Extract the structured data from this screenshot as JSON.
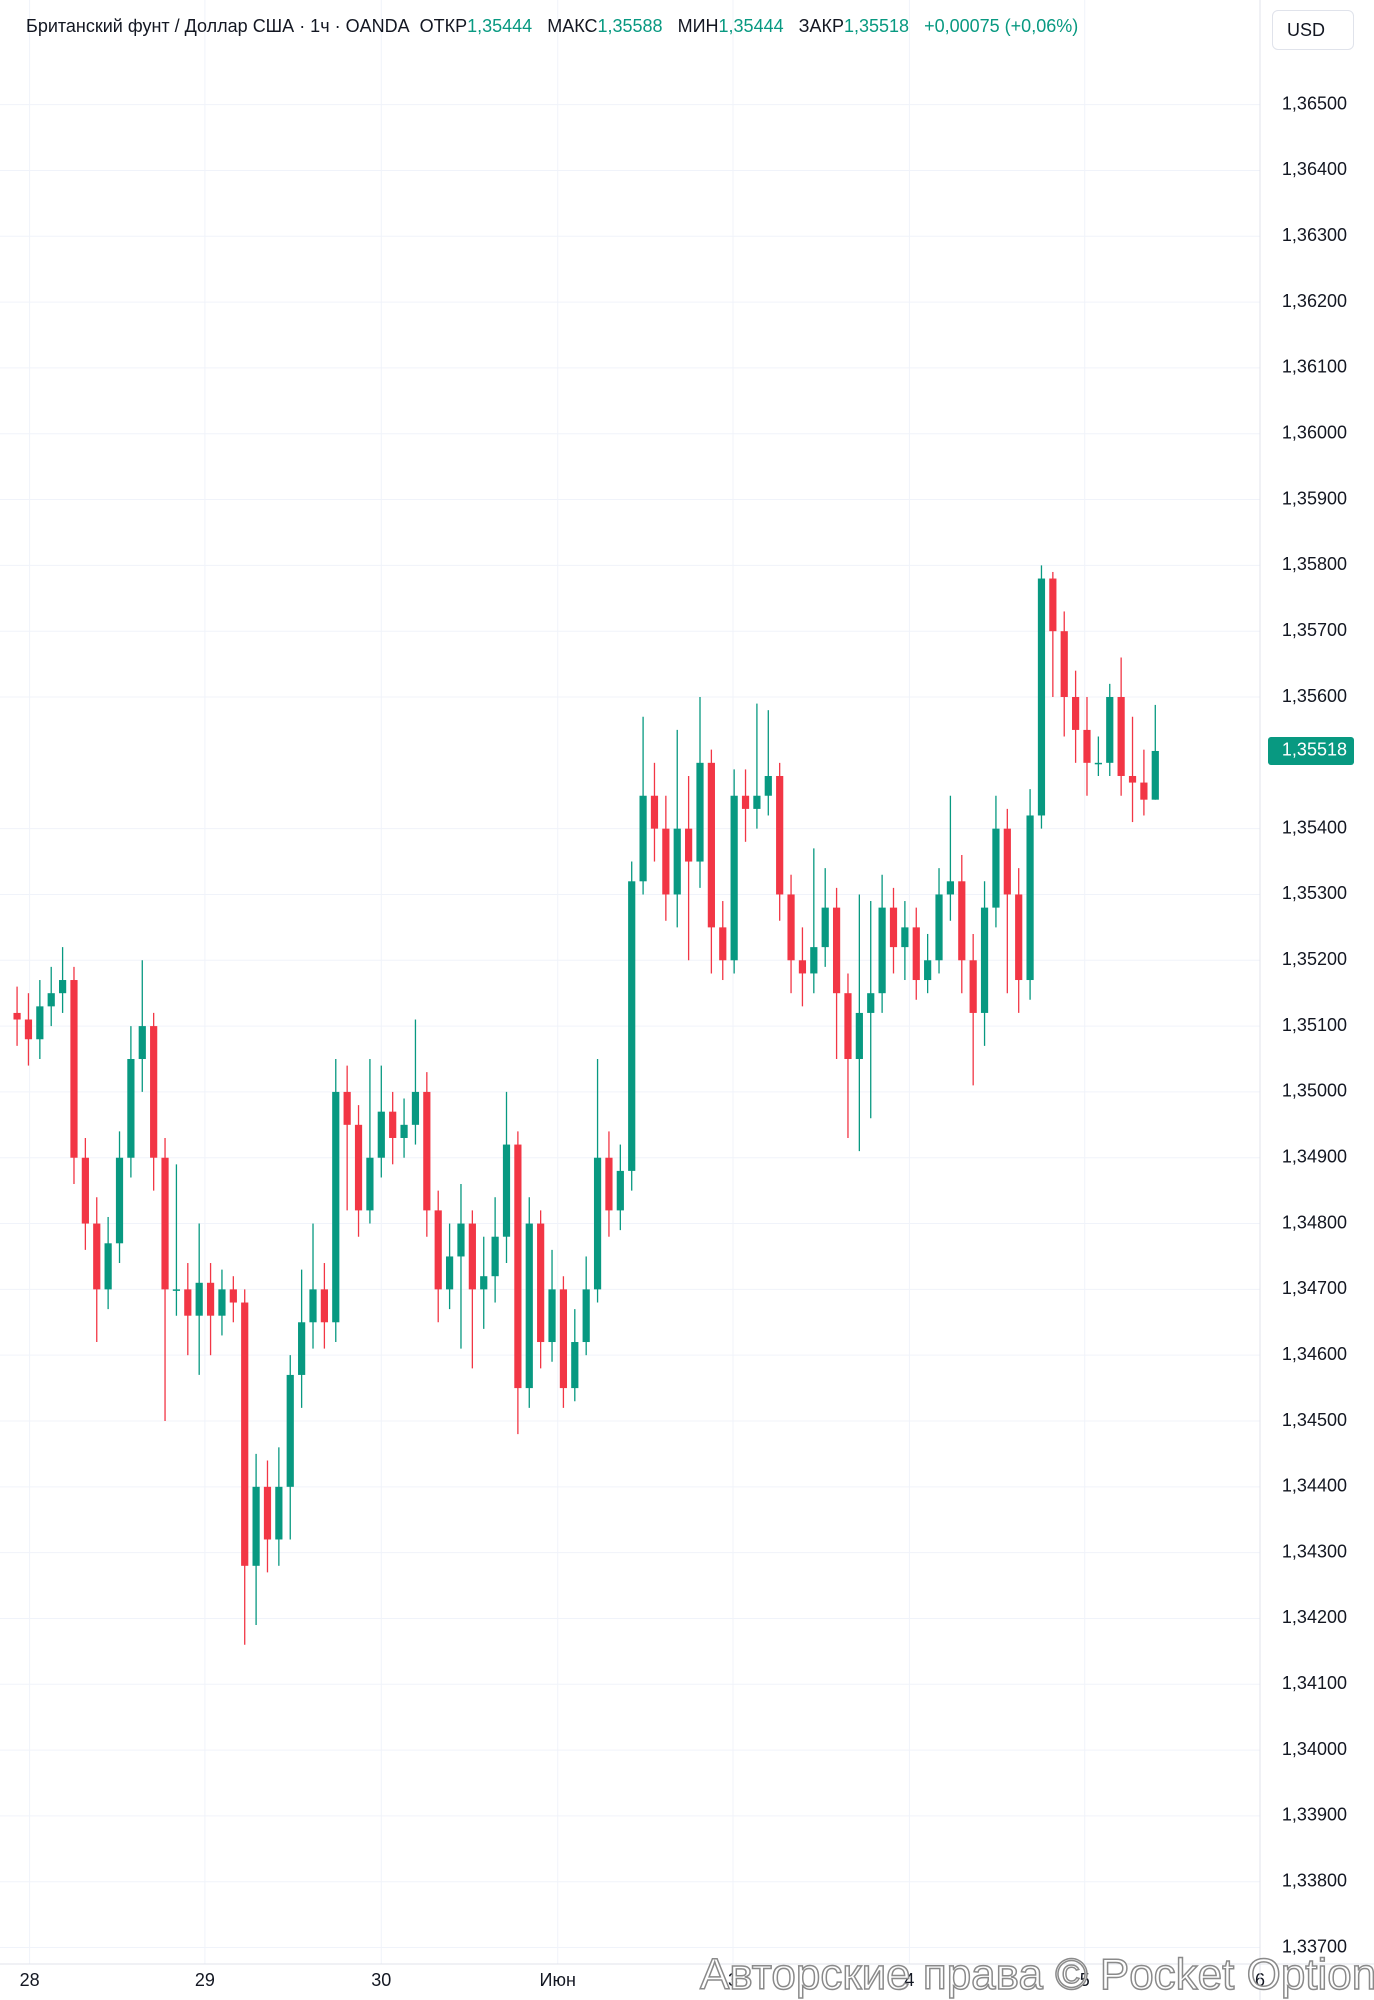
{
  "header": {
    "title": "Британский фунт / Доллар США · 1ч · OANDA",
    "open_label": "ОТКР",
    "open": "1,35444",
    "high_label": "МАКС",
    "high": "1,35588",
    "low_label": "МИН",
    "low": "1,35444",
    "close_label": "ЗАКР",
    "close": "1,35518",
    "change": "+0,00075 (+0,06%)",
    "currency": "USD"
  },
  "watermark": "Авторские права © Pocket Option",
  "chart_data": {
    "type": "candlestick",
    "up_color": "#089981",
    "down_color": "#f23645",
    "grid": true,
    "last_price_label": "1,35518",
    "xlim": [
      -1.5,
      109.2
    ],
    "xticks": [
      {
        "value": 1.1,
        "label": "28"
      },
      {
        "value": 16.5,
        "label": "29"
      },
      {
        "value": 32,
        "label": "30"
      },
      {
        "value": 47.5,
        "label": "Июн"
      },
      {
        "value": 62.9,
        "label": "3"
      },
      {
        "value": 78.4,
        "label": "4"
      },
      {
        "value": 93.8,
        "label": "5"
      },
      {
        "value": 109.2,
        "label": "6"
      }
    ],
    "ylim": [
      1.33675,
      1.36659
    ],
    "yticks": [
      {
        "value": 1.337,
        "label": "1,33700"
      },
      {
        "value": 1.338,
        "label": "1,33800"
      },
      {
        "value": 1.339,
        "label": "1,33900"
      },
      {
        "value": 1.34,
        "label": "1,34000"
      },
      {
        "value": 1.341,
        "label": "1,34100"
      },
      {
        "value": 1.342,
        "label": "1,34200"
      },
      {
        "value": 1.343,
        "label": "1,34300"
      },
      {
        "value": 1.344,
        "label": "1,34400"
      },
      {
        "value": 1.345,
        "label": "1,34500"
      },
      {
        "value": 1.346,
        "label": "1,34600"
      },
      {
        "value": 1.347,
        "label": "1,34700"
      },
      {
        "value": 1.348,
        "label": "1,34800"
      },
      {
        "value": 1.349,
        "label": "1,34900"
      },
      {
        "value": 1.35,
        "label": "1,35000"
      },
      {
        "value": 1.351,
        "label": "1,35100"
      },
      {
        "value": 1.352,
        "label": "1,35200"
      },
      {
        "value": 1.353,
        "label": "1,35300"
      },
      {
        "value": 1.354,
        "label": "1,35400"
      },
      {
        "value": 1.356,
        "label": "1,35600"
      },
      {
        "value": 1.357,
        "label": "1,35700"
      },
      {
        "value": 1.358,
        "label": "1,35800"
      },
      {
        "value": 1.359,
        "label": "1,35900"
      },
      {
        "value": 1.36,
        "label": "1,36000"
      },
      {
        "value": 1.361,
        "label": "1,36100"
      },
      {
        "value": 1.362,
        "label": "1,36200"
      },
      {
        "value": 1.363,
        "label": "1,36300"
      },
      {
        "value": 1.364,
        "label": "1,36400"
      },
      {
        "value": 1.365,
        "label": "1,36500"
      }
    ],
    "open": [
      1.3512,
      1.3511,
      1.3508,
      1.3513,
      1.3515,
      1.3517,
      1.349,
      1.348,
      1.347,
      1.3477,
      1.349,
      1.3505,
      1.351,
      1.349,
      1.347,
      1.347,
      1.3466,
      1.3471,
      1.3466,
      1.347,
      1.3468,
      1.3428,
      1.344,
      1.3432,
      1.344,
      1.3457,
      1.3465,
      1.347,
      1.3465,
      1.35,
      1.3495,
      1.3482,
      1.349,
      1.3497,
      1.3493,
      1.3495,
      1.35,
      1.3482,
      1.347,
      1.3475,
      1.348,
      1.347,
      1.3472,
      1.3478,
      1.3492,
      1.3455,
      1.348,
      1.3462,
      1.347,
      1.3455,
      1.3462,
      1.347,
      1.349,
      1.3482,
      1.3488,
      1.3532,
      1.3545,
      1.354,
      1.353,
      1.354,
      1.3535,
      1.355,
      1.3525,
      1.352,
      1.3545,
      1.3543,
      1.3545,
      1.3548,
      1.353,
      1.352,
      1.3518,
      1.3522,
      1.3528,
      1.3515,
      1.3505,
      1.3512,
      1.3515,
      1.3528,
      1.3522,
      1.3525,
      1.3517,
      1.352,
      1.353,
      1.3532,
      1.352,
      1.3512,
      1.3528,
      1.354,
      1.353,
      1.3517,
      1.3542,
      1.3578,
      1.357,
      1.356,
      1.3555,
      1.355,
      1.355,
      1.356,
      1.3548,
      1.3547,
      1.35444
    ],
    "high": [
      1.3516,
      1.3515,
      1.3517,
      1.3519,
      1.3522,
      1.3519,
      1.3493,
      1.3484,
      1.3481,
      1.3494,
      1.351,
      1.352,
      1.3512,
      1.3493,
      1.3489,
      1.3474,
      1.348,
      1.3474,
      1.3473,
      1.3472,
      1.347,
      1.3445,
      1.3444,
      1.3446,
      1.346,
      1.3473,
      1.348,
      1.3474,
      1.3505,
      1.3504,
      1.3498,
      1.3505,
      1.3504,
      1.35,
      1.3499,
      1.3511,
      1.3503,
      1.3485,
      1.348,
      1.3486,
      1.3482,
      1.3478,
      1.3484,
      1.35,
      1.3494,
      1.3484,
      1.3482,
      1.3476,
      1.3472,
      1.3467,
      1.3475,
      1.3505,
      1.3494,
      1.3492,
      1.3535,
      1.3557,
      1.355,
      1.3545,
      1.3555,
      1.3548,
      1.356,
      1.3552,
      1.3529,
      1.3549,
      1.3549,
      1.3559,
      1.3558,
      1.355,
      1.3533,
      1.3525,
      1.3537,
      1.3534,
      1.3531,
      1.3518,
      1.353,
      1.3529,
      1.3533,
      1.3531,
      1.3529,
      1.3528,
      1.3524,
      1.3534,
      1.3545,
      1.3536,
      1.3524,
      1.3532,
      1.3545,
      1.3543,
      1.3534,
      1.3546,
      1.358,
      1.3579,
      1.3573,
      1.3564,
      1.356,
      1.3554,
      1.3562,
      1.3566,
      1.3557,
      1.3552,
      1.35588
    ],
    "low": [
      1.3507,
      1.3504,
      1.3505,
      1.351,
      1.3512,
      1.3486,
      1.3476,
      1.3462,
      1.3467,
      1.3474,
      1.3487,
      1.35,
      1.3485,
      1.345,
      1.3466,
      1.346,
      1.3457,
      1.346,
      1.3463,
      1.3465,
      1.3416,
      1.3419,
      1.3427,
      1.3428,
      1.3432,
      1.3452,
      1.3461,
      1.3461,
      1.3462,
      1.3482,
      1.3478,
      1.348,
      1.3487,
      1.3489,
      1.349,
      1.3492,
      1.3478,
      1.3465,
      1.3467,
      1.3461,
      1.3458,
      1.3464,
      1.3468,
      1.3474,
      1.3448,
      1.3452,
      1.3458,
      1.3459,
      1.3452,
      1.3453,
      1.346,
      1.3468,
      1.3478,
      1.3479,
      1.3485,
      1.353,
      1.3535,
      1.3526,
      1.3525,
      1.352,
      1.3531,
      1.3518,
      1.3517,
      1.3518,
      1.3538,
      1.354,
      1.3542,
      1.3526,
      1.3515,
      1.3513,
      1.3515,
      1.3519,
      1.3505,
      1.3493,
      1.3491,
      1.3496,
      1.3512,
      1.3518,
      1.3517,
      1.3514,
      1.3515,
      1.3518,
      1.3526,
      1.3515,
      1.3501,
      1.3507,
      1.3525,
      1.3515,
      1.3512,
      1.3514,
      1.354,
      1.356,
      1.3554,
      1.355,
      1.3545,
      1.3548,
      1.3548,
      1.3545,
      1.3541,
      1.3542,
      1.35444
    ],
    "close": [
      1.3511,
      1.3508,
      1.3513,
      1.3515,
      1.3517,
      1.349,
      1.348,
      1.347,
      1.3477,
      1.349,
      1.3505,
      1.351,
      1.349,
      1.347,
      1.347,
      1.3466,
      1.3471,
      1.3466,
      1.347,
      1.3468,
      1.3428,
      1.344,
      1.3432,
      1.344,
      1.3457,
      1.3465,
      1.347,
      1.3465,
      1.35,
      1.3495,
      1.3482,
      1.349,
      1.3497,
      1.3493,
      1.3495,
      1.35,
      1.3482,
      1.347,
      1.3475,
      1.348,
      1.347,
      1.3472,
      1.3478,
      1.3492,
      1.3455,
      1.348,
      1.3462,
      1.347,
      1.3455,
      1.3462,
      1.347,
      1.349,
      1.3482,
      1.3488,
      1.3532,
      1.3545,
      1.354,
      1.353,
      1.354,
      1.3535,
      1.355,
      1.3525,
      1.352,
      1.3545,
      1.3543,
      1.3545,
      1.3548,
      1.353,
      1.352,
      1.3518,
      1.3522,
      1.3528,
      1.3515,
      1.3505,
      1.3512,
      1.3515,
      1.3528,
      1.3522,
      1.3525,
      1.3517,
      1.352,
      1.353,
      1.3532,
      1.352,
      1.3512,
      1.3528,
      1.354,
      1.353,
      1.3517,
      1.3542,
      1.3578,
      1.357,
      1.356,
      1.3555,
      1.355,
      1.355,
      1.356,
      1.3548,
      1.3547,
      1.35444,
      1.35518
    ]
  }
}
